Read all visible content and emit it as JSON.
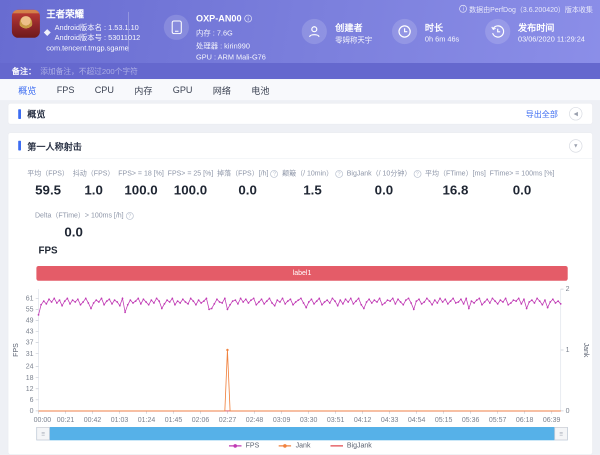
{
  "header": {
    "notice": "数据由PerfDog（3.6.200420）版本收集",
    "game": {
      "name": "王者荣耀",
      "version_name": "Android版本名 : 1.53.1.10",
      "version_code": "Android版本号 : 53011012",
      "package": "com.tencent.tmgp.sgame"
    },
    "device": {
      "model": "OXP-AN00",
      "memory": "内存 : 7.6G",
      "cpu": "处理器 : kirin990",
      "gpu": "GPU : ARM Mali-G76"
    },
    "creator": {
      "label": "创建者",
      "value": "零姆称天宇"
    },
    "duration": {
      "label": "时长",
      "value": "0h 6m 46s"
    },
    "publish": {
      "label": "发布时间",
      "value": "03/06/2020 11:29:24"
    }
  },
  "note_bar": {
    "label": "备注：",
    "placeholder": "添加备注，不超过200个字符"
  },
  "tabs": [
    {
      "label": "概览",
      "active": true
    },
    {
      "label": "FPS",
      "active": false
    },
    {
      "label": "CPU",
      "active": false
    },
    {
      "label": "内存",
      "active": false
    },
    {
      "label": "GPU",
      "active": false
    },
    {
      "label": "网络",
      "active": false
    },
    {
      "label": "电池",
      "active": false
    }
  ],
  "overview": {
    "title": "概览",
    "export_label": "导出全部"
  },
  "panel": {
    "title": "第一人称射击",
    "stats": [
      {
        "label": "平均（FPS）",
        "value": "59.5",
        "help": false
      },
      {
        "label": "抖动（FPS）",
        "value": "1.0",
        "help": false
      },
      {
        "label": "FPS> = 18 [%]",
        "value": "100.0",
        "help": false
      },
      {
        "label": "FPS> = 25 [%]",
        "value": "100.0",
        "help": false
      },
      {
        "label": "掉落（FPS）[/h]",
        "value": "0.0",
        "help": true
      },
      {
        "label": "颠簸（/ 10min）",
        "value": "1.5",
        "help": true
      },
      {
        "label": "BigJank（/ 10分钟）",
        "value": "0.0",
        "help": true
      },
      {
        "label": "平均（FTime）[ms]",
        "value": "16.8",
        "help": false
      },
      {
        "label": "FTime> = 100ms [%]",
        "value": "0.0",
        "help": false
      }
    ],
    "stats2": {
      "label": "Delta（FTime）> 100ms [/h]",
      "value": "0.0",
      "help": true
    }
  },
  "chart_data": {
    "type": "line",
    "title": "FPS",
    "label_bar": "label1",
    "x_ticks": [
      "00:00",
      "00:21",
      "00:42",
      "01:03",
      "01:24",
      "01:45",
      "02:06",
      "02:27",
      "02:48",
      "03:09",
      "03:30",
      "03:51",
      "04:12",
      "04:33",
      "04:54",
      "05:15",
      "05:36",
      "05:57",
      "06:18",
      "06:39"
    ],
    "duration_seconds": 406,
    "tick_interval_seconds": 21,
    "y_left": {
      "label": "FPS",
      "ticks": [
        0,
        6,
        12,
        18,
        24,
        31,
        37,
        43,
        49,
        55,
        61
      ],
      "max": 66
    },
    "y_right": {
      "label": "Jank",
      "ticks": [
        0,
        1,
        2
      ],
      "max": 2
    },
    "series": [
      {
        "name": "FPS",
        "color": "#c03ab4",
        "axis": "left",
        "values": [
          52,
          57.5,
          59.5,
          58,
          60.5,
          59,
          61,
          58.5,
          60,
          57,
          59.5,
          61,
          58,
          60,
          59,
          60.5,
          57.5,
          59,
          61,
          58.5,
          55.5,
          58.5,
          60,
          59,
          61,
          57.5,
          59.5,
          60.5,
          58,
          60,
          59,
          57,
          61,
          53.5,
          57.5,
          60,
          58.5,
          59.5,
          61,
          58,
          60.5,
          59,
          57.5,
          60,
          58.5,
          61,
          59.5,
          55.5,
          58,
          60,
          59,
          61,
          57.5,
          59.5,
          58.5,
          60.5,
          59,
          58,
          61,
          59.5,
          57.5,
          60,
          58.5,
          59.5,
          61,
          55,
          55.5,
          58,
          60.5,
          59,
          58.5,
          61,
          55,
          57.5,
          59.5,
          60,
          58,
          61,
          59,
          60.5,
          58.5,
          60,
          61,
          57.5,
          59,
          60.5,
          58,
          59.5,
          61,
          58.5,
          57,
          60,
          59,
          61,
          58,
          59.5,
          60.5,
          57.5,
          59,
          60,
          61,
          58.5,
          56,
          59,
          60.5,
          58,
          59.5,
          61,
          57.5,
          59,
          60,
          58.5,
          61,
          59.5,
          57,
          60,
          58,
          60.5,
          59,
          61,
          58,
          59.5,
          61,
          57.5,
          55.5,
          59,
          60.5,
          58.5,
          60,
          59,
          61,
          57.5,
          58.5,
          60,
          59.5,
          61,
          58,
          60.5,
          59,
          57.5,
          60,
          61,
          58.5,
          55,
          59.5,
          60.5,
          58,
          59,
          61,
          59.5,
          57.5,
          60,
          58.5,
          61,
          59,
          60.5,
          58,
          59.5,
          61,
          58.5,
          59,
          60.5,
          58,
          61,
          55.5,
          59.5,
          58.5,
          60,
          61,
          57.5,
          59,
          60.5,
          58.5,
          61,
          59.5,
          58,
          60,
          59,
          61,
          57.5,
          58.5,
          60,
          59.5,
          61,
          58,
          60.5,
          55.5,
          59,
          60,
          58.5,
          61,
          59.5,
          57.5,
          60,
          56,
          59,
          60.5,
          58.5,
          59.5,
          58
        ]
      },
      {
        "name": "Jank",
        "color": "#f0823f",
        "axis": "right",
        "baseline": 0,
        "spikes": [
          {
            "index": 72,
            "value": 1
          }
        ]
      },
      {
        "name": "BigJank",
        "color": "#e0484f",
        "axis": "right",
        "baseline": 0,
        "spikes": []
      }
    ]
  }
}
